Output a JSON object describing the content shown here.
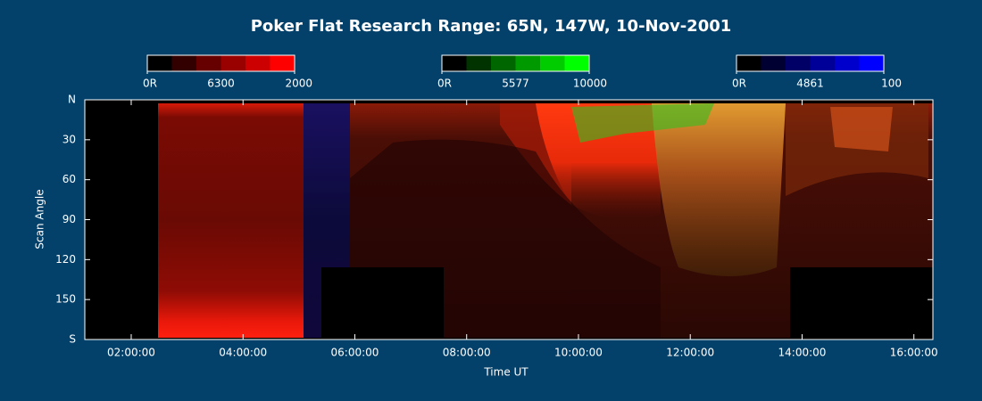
{
  "chart_data": {
    "type": "keogram",
    "title": "Poker Flat Research Range: 65N, 147W, 10-Nov-2001",
    "xlabel": "Time UT",
    "ylabel": "Scan Angle",
    "xlim": [
      1.17,
      16.34
    ],
    "xticks": [
      {
        "value": 2,
        "label": "02:00:00"
      },
      {
        "value": 4,
        "label": "04:00:00"
      },
      {
        "value": 6,
        "label": "06:00:00"
      },
      {
        "value": 8,
        "label": "08:00:00"
      },
      {
        "value": 10,
        "label": "10:00:00"
      },
      {
        "value": 12,
        "label": "12:00:00"
      },
      {
        "value": 14,
        "label": "14:00:00"
      },
      {
        "value": 16,
        "label": "16:00:00"
      }
    ],
    "ylim": [
      0,
      180
    ],
    "yticks": [
      {
        "value": 0,
        "label": "N"
      },
      30,
      60,
      90,
      120,
      150,
      {
        "value": 180,
        "label": "S"
      }
    ],
    "colorbars": [
      {
        "name": "6300",
        "color": "#ff0000",
        "clim": [
          0,
          2000
        ],
        "ticks": [
          {
            "value": 0,
            "label": "0R"
          },
          2000
        ]
      },
      {
        "name": "5577",
        "color": "#00ff00",
        "clim": [
          0,
          10000
        ],
        "ticks": [
          {
            "value": 0,
            "label": "0R"
          },
          10000
        ]
      },
      {
        "name": "4861",
        "color": "#0000ff",
        "clim": [
          0,
          100
        ],
        "ticks": [
          {
            "value": 0,
            "label": "0R"
          },
          100
        ]
      }
    ]
  }
}
